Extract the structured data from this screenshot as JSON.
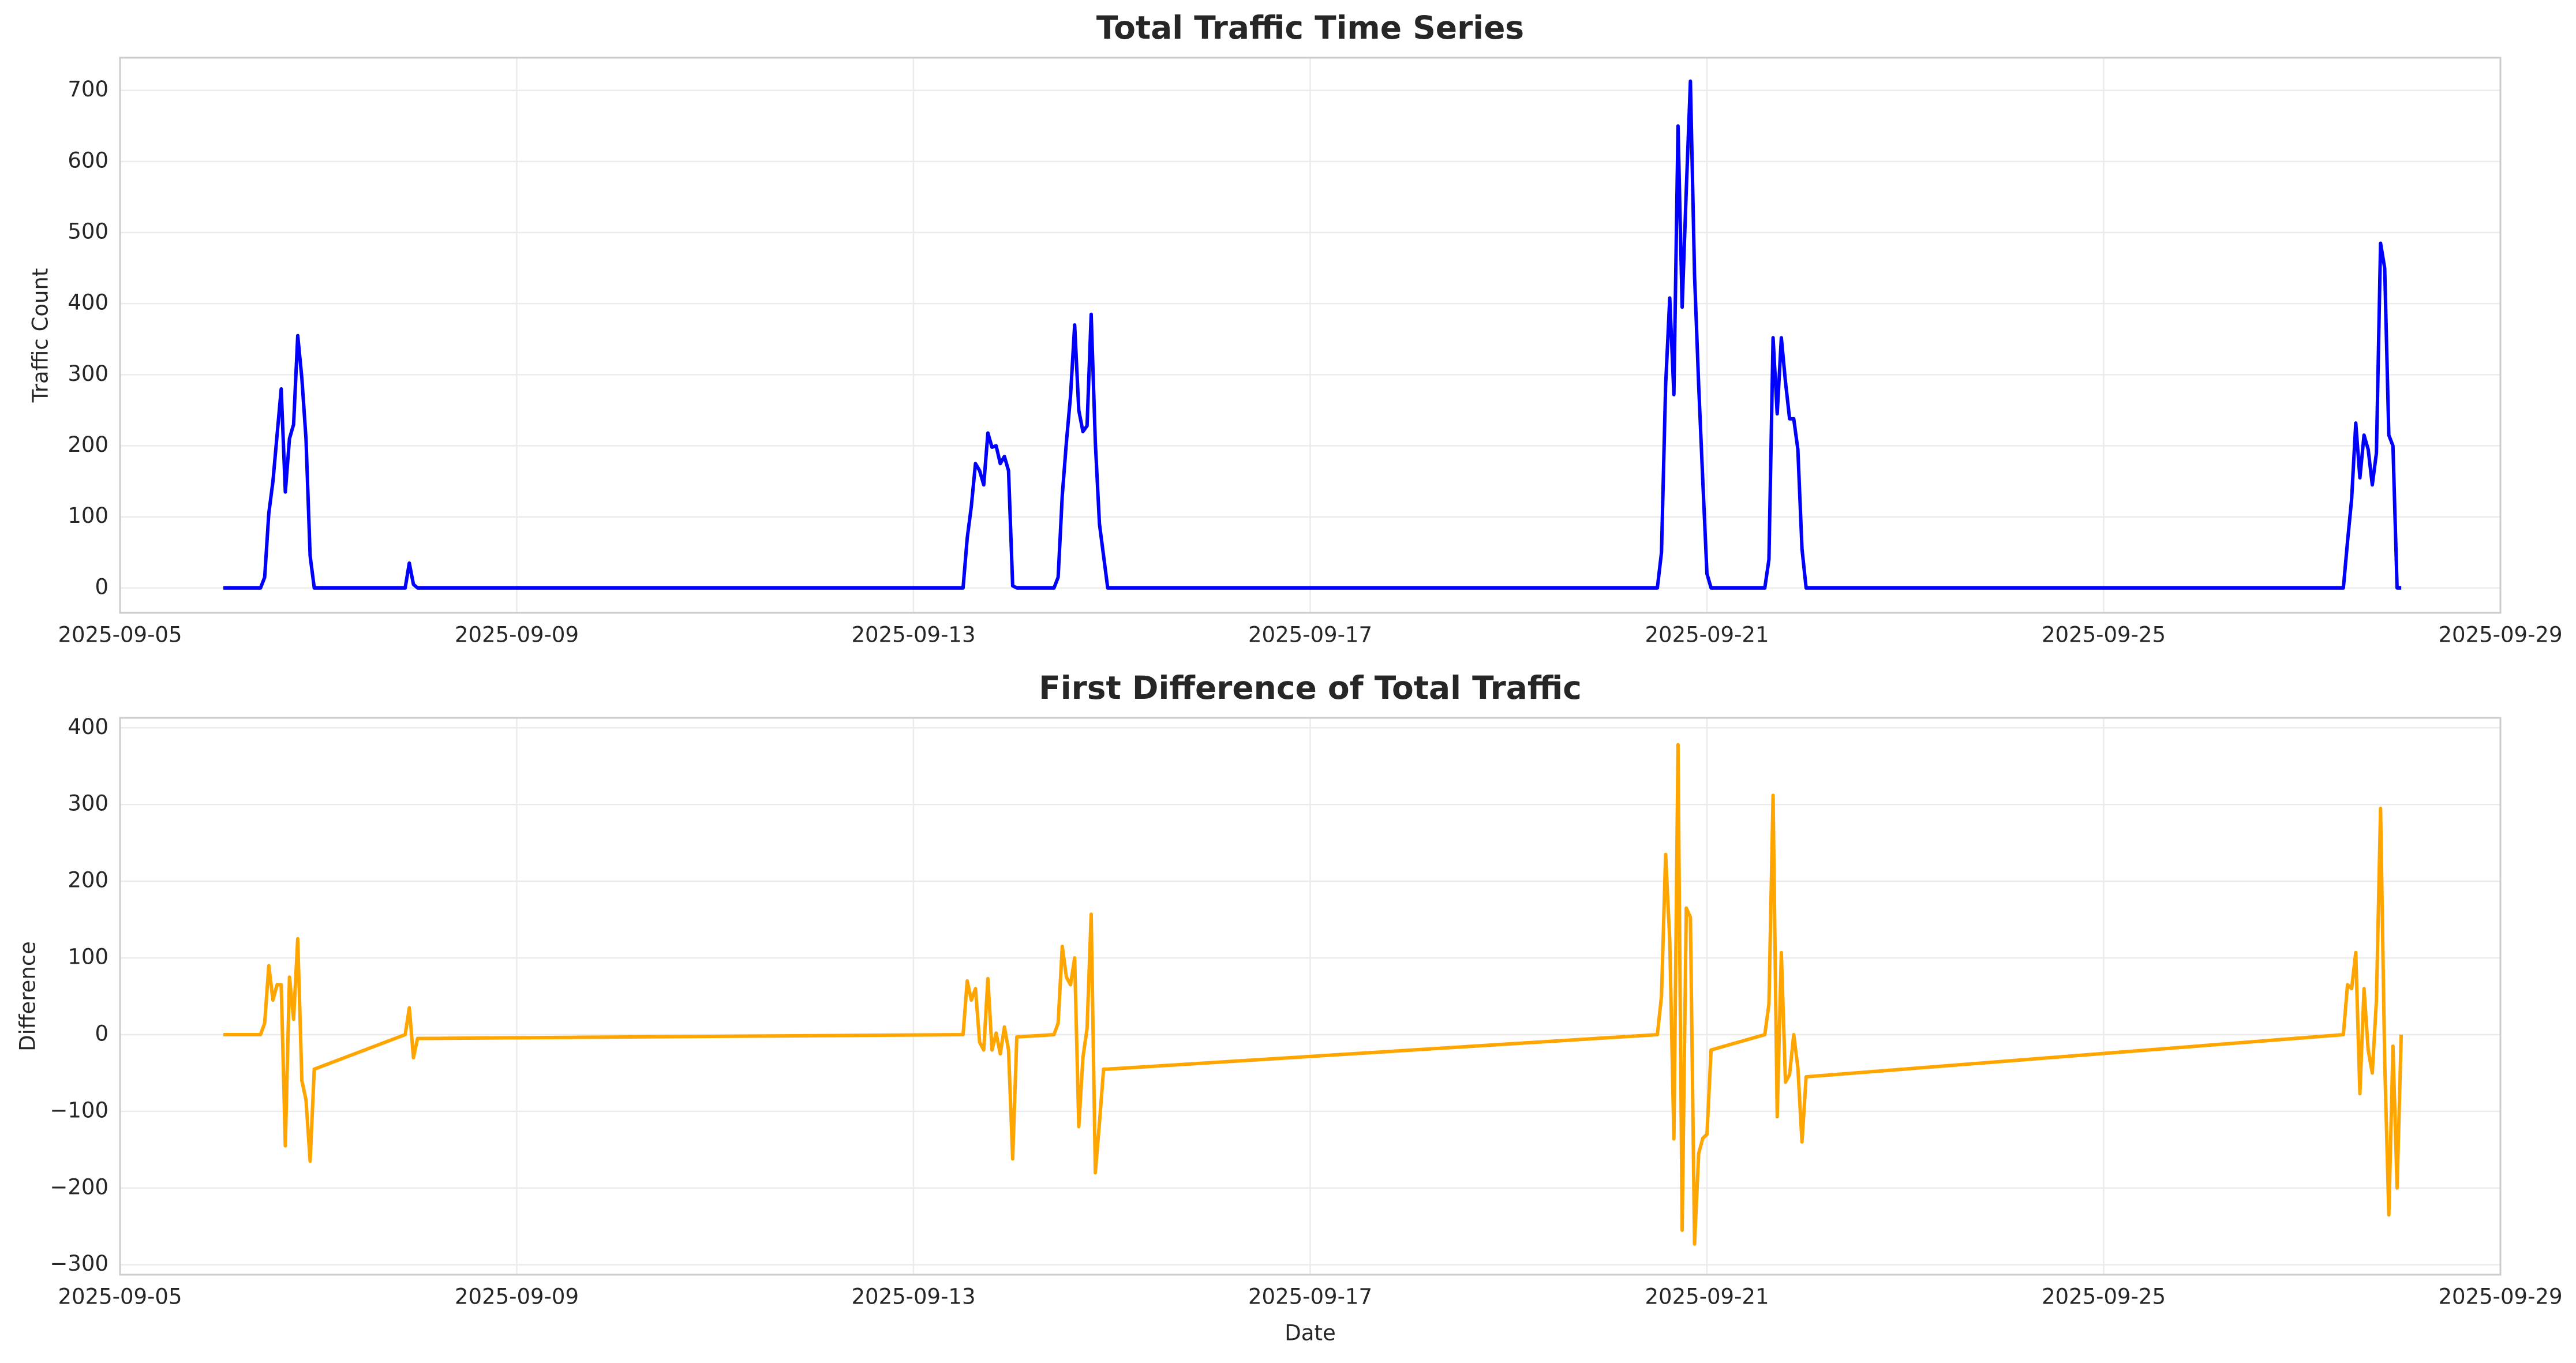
{
  "chart_data": [
    {
      "type": "line",
      "title": "Total Traffic Time Series",
      "ylabel": "Traffic Count",
      "color": "#0000ff",
      "x": [
        "2025-09-06 01:00",
        "2025-09-06 10:00",
        "2025-09-06 11:00",
        "2025-09-06 12:00",
        "2025-09-06 13:00",
        "2025-09-06 14:00",
        "2025-09-06 15:00",
        "2025-09-06 16:00",
        "2025-09-06 17:00",
        "2025-09-06 18:00",
        "2025-09-06 19:00",
        "2025-09-06 20:00",
        "2025-09-06 21:00",
        "2025-09-06 22:00",
        "2025-09-06 23:00",
        "2025-09-07 21:00",
        "2025-09-07 22:00",
        "2025-09-07 23:00",
        "2025-09-08 00:00",
        "2025-09-13 12:00",
        "2025-09-13 13:00",
        "2025-09-13 14:00",
        "2025-09-13 15:00",
        "2025-09-13 16:00",
        "2025-09-13 17:00",
        "2025-09-13 18:00",
        "2025-09-13 19:00",
        "2025-09-13 20:00",
        "2025-09-13 21:00",
        "2025-09-13 22:00",
        "2025-09-13 23:00",
        "2025-09-14 00:00",
        "2025-09-14 01:00",
        "2025-09-14 10:00",
        "2025-09-14 11:00",
        "2025-09-14 12:00",
        "2025-09-14 13:00",
        "2025-09-14 14:00",
        "2025-09-14 15:00",
        "2025-09-14 16:00",
        "2025-09-14 17:00",
        "2025-09-14 18:00",
        "2025-09-14 19:00",
        "2025-09-14 20:00",
        "2025-09-14 21:00",
        "2025-09-14 22:00",
        "2025-09-14 23:00",
        "2025-09-20 12:00",
        "2025-09-20 13:00",
        "2025-09-20 14:00",
        "2025-09-20 15:00",
        "2025-09-20 16:00",
        "2025-09-20 17:00",
        "2025-09-20 18:00",
        "2025-09-20 19:00",
        "2025-09-20 20:00",
        "2025-09-20 21:00",
        "2025-09-20 22:00",
        "2025-09-20 23:00",
        "2025-09-21 00:00",
        "2025-09-21 01:00",
        "2025-09-21 14:00",
        "2025-09-21 15:00",
        "2025-09-21 16:00",
        "2025-09-21 17:00",
        "2025-09-21 18:00",
        "2025-09-21 19:00",
        "2025-09-21 20:00",
        "2025-09-21 21:00",
        "2025-09-21 22:00",
        "2025-09-21 23:00",
        "2025-09-22 00:00",
        "2025-09-27 10:00",
        "2025-09-27 11:00",
        "2025-09-27 12:00",
        "2025-09-27 13:00",
        "2025-09-27 14:00",
        "2025-09-27 15:00",
        "2025-09-27 16:00",
        "2025-09-27 17:00",
        "2025-09-27 18:00",
        "2025-09-27 19:00",
        "2025-09-27 20:00",
        "2025-09-27 21:00",
        "2025-09-27 22:00",
        "2025-09-27 23:00",
        "2025-09-28 00:00"
      ],
      "values": [
        0,
        0,
        15,
        105,
        150,
        215,
        280,
        135,
        210,
        230,
        355,
        295,
        210,
        45,
        0,
        0,
        35,
        5,
        0,
        0,
        70,
        115,
        175,
        165,
        145,
        218,
        198,
        200,
        175,
        185,
        165,
        3,
        0,
        0,
        15,
        130,
        205,
        270,
        370,
        250,
        220,
        228,
        385,
        205,
        90,
        45,
        0,
        0,
        50,
        285,
        408,
        272,
        650,
        395,
        560,
        713,
        440,
        285,
        150,
        20,
        0,
        0,
        40,
        352,
        245,
        352,
        290,
        238,
        238,
        195,
        55,
        0,
        0,
        65,
        125,
        232,
        155,
        215,
        195,
        145,
        190,
        485,
        450,
        215,
        200,
        0,
        0
      ],
      "xlim": [
        "2025-09-05",
        "2025-09-29"
      ],
      "xticks": [
        "2025-09-05",
        "2025-09-09",
        "2025-09-13",
        "2025-09-17",
        "2025-09-21",
        "2025-09-25",
        "2025-09-29"
      ],
      "ylim": [
        -35,
        746
      ],
      "yticks": [
        0,
        100,
        200,
        300,
        400,
        500,
        600,
        700
      ],
      "grid": true
    },
    {
      "type": "line",
      "title": "First Difference of Total Traffic",
      "ylabel": "Difference",
      "xlabel": "Date",
      "color": "#ffa500",
      "x": [
        "2025-09-06 01:00",
        "2025-09-06 10:00",
        "2025-09-06 11:00",
        "2025-09-06 12:00",
        "2025-09-06 13:00",
        "2025-09-06 14:00",
        "2025-09-06 15:00",
        "2025-09-06 16:00",
        "2025-09-06 17:00",
        "2025-09-06 18:00",
        "2025-09-06 19:00",
        "2025-09-06 20:00",
        "2025-09-06 21:00",
        "2025-09-06 22:00",
        "2025-09-06 23:00",
        "2025-09-07 21:00",
        "2025-09-07 22:00",
        "2025-09-07 23:00",
        "2025-09-08 00:00",
        "2025-09-13 12:00",
        "2025-09-13 13:00",
        "2025-09-13 14:00",
        "2025-09-13 15:00",
        "2025-09-13 16:00",
        "2025-09-13 17:00",
        "2025-09-13 18:00",
        "2025-09-13 19:00",
        "2025-09-13 20:00",
        "2025-09-13 21:00",
        "2025-09-13 22:00",
        "2025-09-13 23:00",
        "2025-09-14 00:00",
        "2025-09-14 01:00",
        "2025-09-14 10:00",
        "2025-09-14 11:00",
        "2025-09-14 12:00",
        "2025-09-14 13:00",
        "2025-09-14 14:00",
        "2025-09-14 15:00",
        "2025-09-14 16:00",
        "2025-09-14 17:00",
        "2025-09-14 18:00",
        "2025-09-14 19:00",
        "2025-09-14 20:00",
        "2025-09-14 21:00",
        "2025-09-14 22:00",
        "2025-09-14 23:00",
        "2025-09-20 12:00",
        "2025-09-20 13:00",
        "2025-09-20 14:00",
        "2025-09-20 15:00",
        "2025-09-20 16:00",
        "2025-09-20 17:00",
        "2025-09-20 18:00",
        "2025-09-20 19:00",
        "2025-09-20 20:00",
        "2025-09-20 21:00",
        "2025-09-20 22:00",
        "2025-09-20 23:00",
        "2025-09-21 00:00",
        "2025-09-21 01:00",
        "2025-09-21 14:00",
        "2025-09-21 15:00",
        "2025-09-21 16:00",
        "2025-09-21 17:00",
        "2025-09-21 18:00",
        "2025-09-21 19:00",
        "2025-09-21 20:00",
        "2025-09-21 21:00",
        "2025-09-21 22:00",
        "2025-09-21 23:00",
        "2025-09-22 00:00",
        "2025-09-27 10:00",
        "2025-09-27 11:00",
        "2025-09-27 12:00",
        "2025-09-27 13:00",
        "2025-09-27 14:00",
        "2025-09-27 15:00",
        "2025-09-27 16:00",
        "2025-09-27 17:00",
        "2025-09-27 18:00",
        "2025-09-27 19:00",
        "2025-09-27 20:00",
        "2025-09-27 21:00",
        "2025-09-27 22:00",
        "2025-09-27 23:00",
        "2025-09-28 00:00"
      ],
      "values": [
        0,
        0,
        15,
        90,
        45,
        65,
        65,
        -145,
        75,
        20,
        125,
        -60,
        -85,
        -165,
        -45,
        0,
        35,
        -30,
        -5,
        0,
        70,
        45,
        60,
        -10,
        -20,
        73,
        -20,
        2,
        -25,
        10,
        -20,
        -162,
        -3,
        0,
        15,
        115,
        75,
        65,
        100,
        -120,
        -30,
        8,
        157,
        -180,
        -115,
        -45,
        -45,
        0,
        50,
        235,
        123,
        -136,
        378,
        -255,
        165,
        153,
        -273,
        -155,
        -135,
        -130,
        -20,
        0,
        40,
        312,
        -107,
        107,
        -62,
        -52,
        0,
        -43,
        -140,
        -55,
        0,
        65,
        60,
        107,
        -77,
        60,
        -20,
        -50,
        45,
        295,
        -35,
        -235,
        -15,
        -200,
        0
      ],
      "xlim": [
        "2025-09-05",
        "2025-09-29"
      ],
      "xticks": [
        "2025-09-05",
        "2025-09-09",
        "2025-09-13",
        "2025-09-17",
        "2025-09-21",
        "2025-09-25",
        "2025-09-29"
      ],
      "ylim": [
        -313,
        413
      ],
      "yticks": [
        {
          "value": -300,
          "label": "−300"
        },
        {
          "value": -200,
          "label": "−200"
        },
        {
          "value": -100,
          "label": "−100"
        },
        0,
        100,
        200,
        300,
        400
      ],
      "grid": true
    }
  ]
}
